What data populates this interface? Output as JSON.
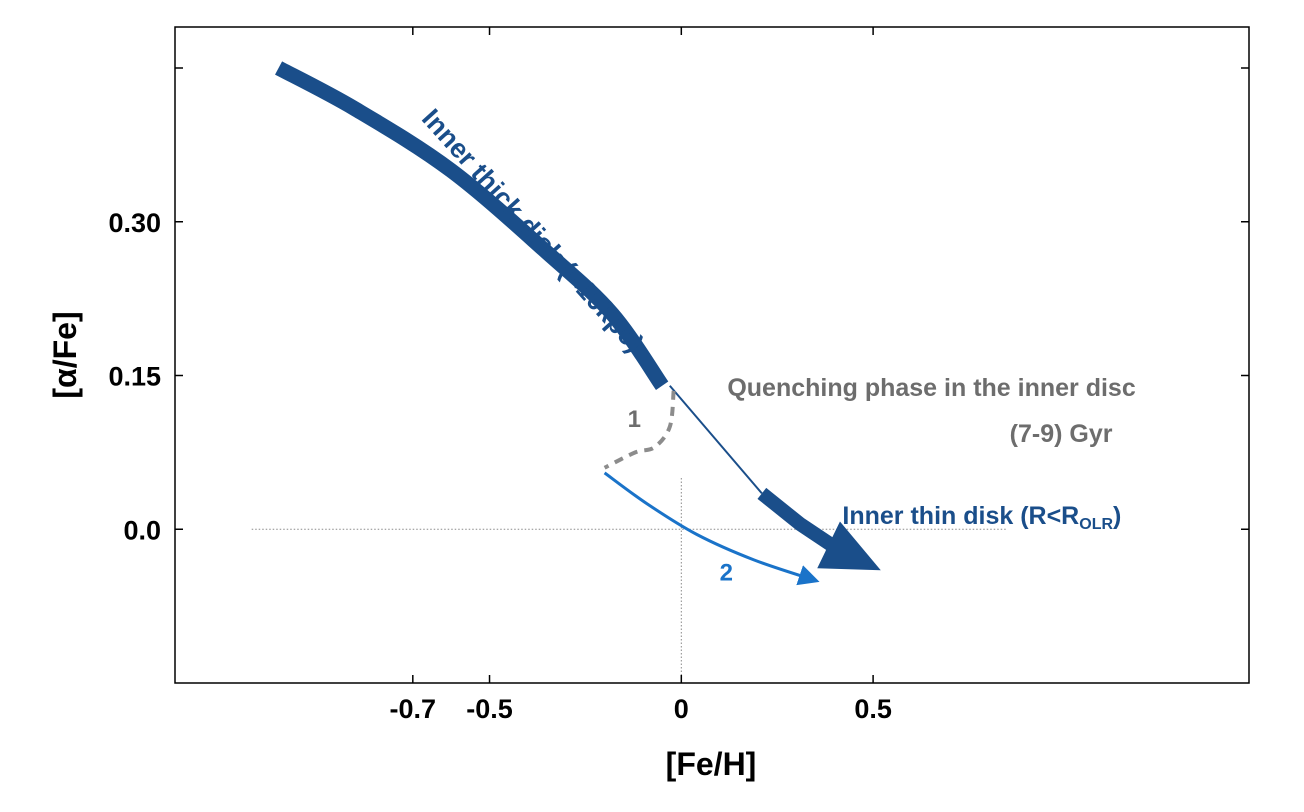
{
  "chart_data": {
    "type": "line",
    "title": "",
    "xlabel": "[Fe/H]",
    "ylabel": "[α/Fe]",
    "xlim": [
      -1.32,
      1.48
    ],
    "ylim": [
      -0.15,
      0.49
    ],
    "xticks": [
      -0.7,
      -0.5,
      0.0,
      0.5
    ],
    "xtick_labels": [
      "-0.7",
      "-0.5",
      "0",
      "0.5"
    ],
    "yticks": [
      0.0,
      0.15,
      0.3
    ],
    "ytick_labels": [
      "0.0",
      "0.15",
      "0.30"
    ],
    "grid": false,
    "reference_lines": [
      {
        "orientation": "horizontal",
        "value": 0.0,
        "style": "dotted"
      },
      {
        "orientation": "vertical",
        "value": 0.0,
        "style": "dotted"
      }
    ],
    "series": [
      {
        "name": "Inner thick disk (<10kpc)",
        "color": "#1a4e8a",
        "style": "thick-curve",
        "x": [
          -1.05,
          -0.85,
          -0.6,
          -0.35,
          -0.18,
          -0.05
        ],
        "y": [
          0.45,
          0.41,
          0.35,
          0.27,
          0.21,
          0.14
        ]
      },
      {
        "name": "Quenching phase in the inner disc (7-9) Gyr",
        "color": "#1a4e8a",
        "style": "thin-line",
        "x": [
          -0.03,
          0.21
        ],
        "y": [
          0.14,
          0.035
        ]
      },
      {
        "name": "Inner thin disk (R<R_OLR)",
        "color": "#1a4e8a",
        "style": "thick-arrow",
        "x": [
          0.21,
          0.31,
          0.41,
          0.52
        ],
        "y": [
          0.035,
          0.005,
          -0.02,
          -0.04
        ]
      },
      {
        "name": "1",
        "color": "#8c8c8c",
        "style": "dashed",
        "x": [
          -0.02,
          -0.03,
          -0.07,
          -0.12,
          -0.2
        ],
        "y": [
          0.135,
          0.1,
          0.08,
          0.075,
          0.06
        ]
      },
      {
        "name": "2",
        "color": "#1a73c9",
        "style": "thin-arrow",
        "x": [
          -0.2,
          -0.09,
          0.04,
          0.19,
          0.35
        ],
        "y": [
          0.055,
          0.025,
          -0.005,
          -0.03,
          -0.05
        ]
      }
    ],
    "annotations": [
      {
        "text": "Inner thick disk (<10kpc)",
        "x": -0.68,
        "y": 0.4,
        "color": "#1a4e8a"
      },
      {
        "text": "Quenching phase in the inner disc",
        "x": 0.12,
        "y": 0.13,
        "color": "#6d6d6d"
      },
      {
        "text": "(7-9) Gyr",
        "x": 0.99,
        "y": 0.085,
        "color": "#6d6d6d"
      },
      {
        "text": "1",
        "x": -0.14,
        "y": 0.1,
        "color": "#6d6d6d"
      },
      {
        "text": "2",
        "x": 0.1,
        "y": -0.05,
        "color": "#1a73c9"
      }
    ]
  },
  "labels": {
    "thick_disk": "Inner thick disk (<10kpc)",
    "quenching": "Quenching phase in the inner disc",
    "quenching_time": "(7-9) Gyr",
    "thin_disk_main": "Inner thin disk (R<R",
    "thin_disk_sub": "OLR",
    "thin_disk_close": ")",
    "path_1": "1",
    "path_2": "2"
  },
  "colors": {
    "dark_blue": "#1a4e8a",
    "mid_blue": "#1a73c9",
    "gray_text": "#6d6d6d",
    "gray_dash": "#8c8c8c",
    "axes": "#000000"
  }
}
